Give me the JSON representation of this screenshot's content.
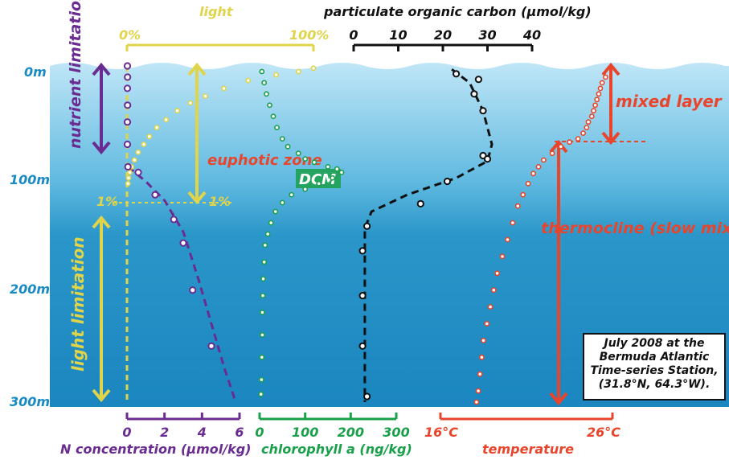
{
  "chart_data": {
    "type": "scatter",
    "title": "",
    "depth_axis": {
      "ticks": [
        {
          "value": 0,
          "label": "0m"
        },
        {
          "value": 100,
          "label": "100m"
        },
        {
          "value": 200,
          "label": "200m"
        },
        {
          "value": 300,
          "label": "300m"
        }
      ],
      "ylim": [
        0,
        300
      ]
    },
    "axes": {
      "light": {
        "label": "light",
        "range": [
          0,
          100
        ],
        "tick_labels": [
          "0%",
          "100%"
        ],
        "color": "#e0d44a"
      },
      "poc": {
        "label": "particulate organic carbon (μmol/kg)",
        "range": [
          0,
          40
        ],
        "ticks": [
          0,
          10,
          20,
          30,
          40
        ],
        "tick_labels": [
          "0",
          "10",
          "20",
          "30",
          "40"
        ],
        "color": "#111111"
      },
      "nitrogen": {
        "label": "N concentration (μmol/kg)",
        "range": [
          0,
          6
        ],
        "ticks": [
          0,
          2,
          4,
          6
        ],
        "tick_labels": [
          "0",
          "2",
          "4",
          "6"
        ],
        "color": "#6a2c91"
      },
      "chlorophyll": {
        "label": "chlorophyll a (ng/kg)",
        "range": [
          0,
          300
        ],
        "ticks": [
          0,
          100,
          200,
          300
        ],
        "tick_labels": [
          "0",
          "100",
          "200",
          "300"
        ],
        "color": "#1aa04a"
      },
      "temperature": {
        "label": "temperature",
        "range": [
          16,
          26
        ],
        "tick_labels": [
          "16°C",
          "26°C"
        ],
        "color": "#e8452c"
      }
    },
    "series": [
      {
        "name": "light",
        "axis": "light",
        "color": "#e0d44a",
        "points": [
          [
            100,
            2
          ],
          [
            92,
            5
          ],
          [
            80,
            8
          ],
          [
            65,
            13
          ],
          [
            52,
            20
          ],
          [
            42,
            27
          ],
          [
            34,
            33
          ],
          [
            27,
            40
          ],
          [
            21,
            48
          ],
          [
            16,
            55
          ],
          [
            12,
            63
          ],
          [
            9,
            70
          ],
          [
            6,
            77
          ],
          [
            4,
            84
          ],
          [
            2.5,
            90
          ],
          [
            1.5,
            95
          ],
          [
            0.8,
            100
          ],
          [
            0.5,
            105
          ]
        ]
      },
      {
        "name": "N concentration (μmol/kg)",
        "axis": "nitrogen",
        "color": "#6a2c91",
        "points": [
          [
            0.02,
            0
          ],
          [
            0.03,
            10
          ],
          [
            0.02,
            20
          ],
          [
            0.03,
            35
          ],
          [
            0.02,
            50
          ],
          [
            0.02,
            70
          ],
          [
            0.05,
            90
          ],
          [
            0.6,
            95
          ],
          [
            1.5,
            115
          ],
          [
            2.5,
            137
          ],
          [
            3.0,
            158
          ],
          [
            3.5,
            200
          ],
          [
            4.5,
            250
          ]
        ],
        "fit": [
          [
            0.05,
            90
          ],
          [
            1.0,
            103
          ],
          [
            2.0,
            120
          ],
          [
            3.0,
            148
          ],
          [
            3.8,
            190
          ],
          [
            4.5,
            230
          ],
          [
            5.2,
            270
          ],
          [
            5.8,
            300
          ]
        ]
      },
      {
        "name": "chlorophyll a (ng/kg)",
        "axis": "chlorophyll",
        "color": "#1aa04a",
        "points": [
          [
            5,
            5
          ],
          [
            10,
            15
          ],
          [
            15,
            25
          ],
          [
            22,
            35
          ],
          [
            30,
            45
          ],
          [
            38,
            55
          ],
          [
            50,
            65
          ],
          [
            62,
            72
          ],
          [
            85,
            78
          ],
          [
            100,
            83
          ],
          [
            120,
            86
          ],
          [
            150,
            90
          ],
          [
            170,
            92
          ],
          [
            180,
            95
          ],
          [
            160,
            100
          ],
          [
            130,
            105
          ],
          [
            100,
            110
          ],
          [
            70,
            115
          ],
          [
            50,
            122
          ],
          [
            35,
            130
          ],
          [
            25,
            140
          ],
          [
            18,
            150
          ],
          [
            12,
            160
          ],
          [
            10,
            175
          ],
          [
            8,
            190
          ],
          [
            7,
            205
          ],
          [
            6,
            220
          ],
          [
            6,
            240
          ],
          [
            5,
            260
          ],
          [
            4,
            280
          ],
          [
            3,
            293
          ]
        ]
      },
      {
        "name": "particulate organic carbon (μmol/kg)",
        "axis": "poc",
        "color": "#111111",
        "points": [
          [
            23,
            7
          ],
          [
            28,
            12
          ],
          [
            27,
            25
          ],
          [
            29,
            40
          ],
          [
            29,
            80
          ],
          [
            30,
            83
          ],
          [
            21,
            103
          ],
          [
            15,
            123
          ],
          [
            3,
            143
          ],
          [
            2,
            165
          ],
          [
            2,
            205
          ],
          [
            2,
            250
          ],
          [
            3,
            295
          ]
        ],
        "fit": [
          [
            22,
            3
          ],
          [
            26,
            15
          ],
          [
            29,
            40
          ],
          [
            31,
            70
          ],
          [
            30,
            85
          ],
          [
            23,
            100
          ],
          [
            12,
            115
          ],
          [
            4,
            130
          ],
          [
            2.5,
            145
          ],
          [
            2.5,
            200
          ],
          [
            2.5,
            300
          ]
        ]
      },
      {
        "name": "temperature",
        "axis": "temperature",
        "color": "#e8452c",
        "points": [
          [
            25.6,
            10
          ],
          [
            25.4,
            15
          ],
          [
            25.3,
            20
          ],
          [
            25.2,
            25
          ],
          [
            25.1,
            30
          ],
          [
            25.0,
            35
          ],
          [
            24.9,
            40
          ],
          [
            24.8,
            45
          ],
          [
            24.6,
            50
          ],
          [
            24.5,
            55
          ],
          [
            24.3,
            60
          ],
          [
            24.0,
            65
          ],
          [
            23.5,
            68
          ],
          [
            23.0,
            72
          ],
          [
            22.5,
            78
          ],
          [
            22.0,
            84
          ],
          [
            21.7,
            90
          ],
          [
            21.4,
            96
          ],
          [
            21.1,
            105
          ],
          [
            20.8,
            115
          ],
          [
            20.5,
            125
          ],
          [
            20.2,
            140
          ],
          [
            19.9,
            155
          ],
          [
            19.6,
            170
          ],
          [
            19.3,
            185
          ],
          [
            19.1,
            200
          ],
          [
            18.9,
            215
          ],
          [
            18.7,
            230
          ],
          [
            18.5,
            245
          ],
          [
            18.4,
            260
          ],
          [
            18.3,
            275
          ],
          [
            18.2,
            290
          ],
          [
            18.1,
            300
          ]
        ]
      }
    ],
    "annotations": {
      "nutrient": "nutrient limitation",
      "euphotic": "euphotic zone",
      "light_lim": "light limitation",
      "one_pct_left": "1%",
      "one_pct_right": "1%",
      "dcm": "DCM",
      "mixed": "mixed layer",
      "thermocline": "thermocline (slow mixing)",
      "station_box": "July 2008 at the Bermuda Atlantic Time-series Station, (31.8°N, 64.3°W)."
    },
    "colors": {
      "water_top": "#a8dcf2",
      "water_deep": "#1b86bf",
      "line": "#e0d44a"
    }
  }
}
